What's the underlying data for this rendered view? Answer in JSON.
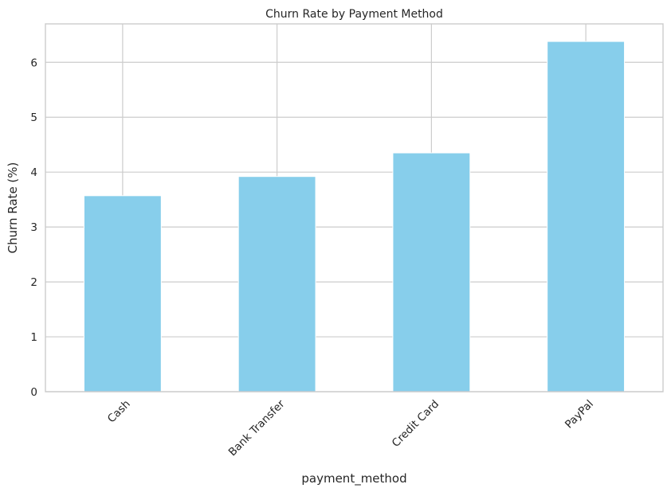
{
  "chart_data": {
    "type": "bar",
    "title": "Churn Rate by Payment Method",
    "xlabel": "payment_method",
    "ylabel": "Churn Rate (%)",
    "categories": [
      "Cash",
      "Bank Transfer",
      "Credit Card",
      "PayPal"
    ],
    "values": [
      3.57,
      3.92,
      4.35,
      6.38
    ],
    "ylim": [
      0,
      6.7
    ],
    "yticks": [
      0,
      1,
      2,
      3,
      4,
      5,
      6
    ],
    "grid": true,
    "bar_color": "#87ceeb",
    "grid_color": "#cccccc",
    "x_tick_rotation": 45
  }
}
